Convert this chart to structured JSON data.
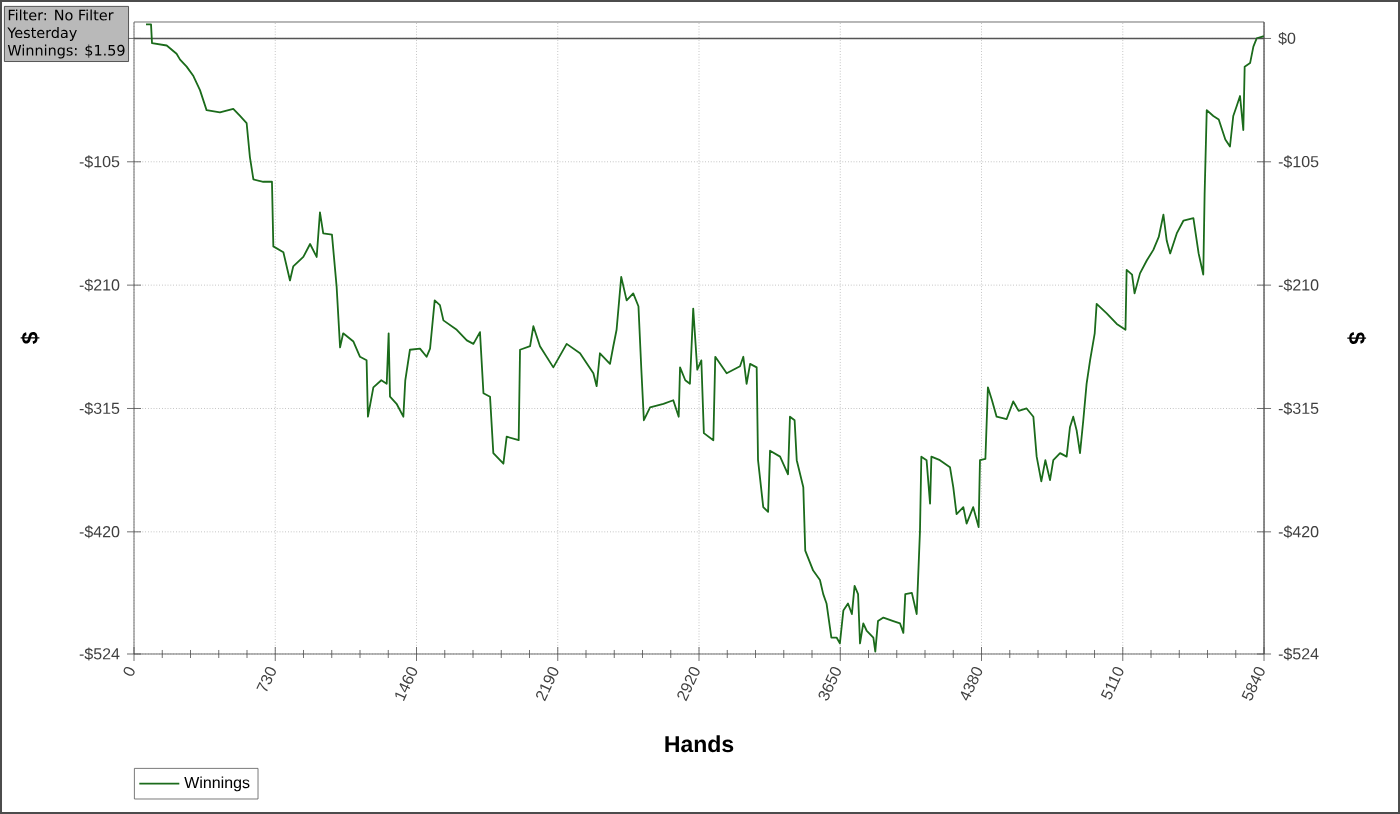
{
  "chart_data": {
    "type": "line",
    "xlabel": "Hands",
    "ylabel": "$",
    "y2label": "$",
    "annotations": [
      "Filter: No Filter",
      "Yesterday",
      "Winnings: $1.59"
    ],
    "x": [
      62,
      88,
      93,
      169,
      220,
      238,
      272,
      307,
      341,
      375,
      444,
      513,
      548,
      582,
      599,
      617,
      668,
      713,
      720,
      772,
      806,
      823,
      875,
      910,
      944,
      961,
      978,
      1023,
      1047,
      1065,
      1081,
      1134,
      1168,
      1202,
      1209,
      1237,
      1278,
      1306,
      1316,
      1323,
      1357,
      1392,
      1402,
      1426,
      1478,
      1512,
      1530,
      1554,
      1581,
      1599,
      1668,
      1720,
      1754,
      1788,
      1806,
      1840,
      1857,
      1909,
      1926,
      1988,
      1995,
      2047,
      2064,
      2098,
      2167,
      2236,
      2305,
      2374,
      2391,
      2408,
      2460,
      2477,
      2494,
      2518,
      2546,
      2580,
      2607,
      2622,
      2635,
      2667,
      2736,
      2787,
      2815,
      2822,
      2849,
      2873,
      2890,
      2911,
      2932,
      2945,
      2994,
      3004,
      3063,
      3132,
      3149,
      3166,
      3184,
      3218,
      3225,
      3252,
      3277,
      3287,
      3339,
      3380,
      3390,
      3414,
      3425,
      3459,
      3469,
      3510,
      3545,
      3562,
      3579,
      3604,
      3631,
      3648,
      3666,
      3690,
      3710,
      3724,
      3742,
      3752,
      3769,
      3786,
      3821,
      3831,
      3845,
      3873,
      3924,
      3959,
      3976,
      3986,
      4020,
      4045,
      4062,
      4069,
      4096,
      4114,
      4121,
      4165,
      4217,
      4234,
      4251,
      4286,
      4303,
      4337,
      4365,
      4372,
      4400,
      4413,
      4434,
      4458,
      4510,
      4544,
      4572,
      4613,
      4648,
      4665,
      4689,
      4710,
      4734,
      4751,
      4786,
      4820,
      4837,
      4854,
      4872,
      4889,
      4906,
      4923,
      4941,
      4965,
      4975,
      5027,
      5079,
      5124,
      5130,
      5158,
      5171,
      5199,
      5234,
      5268,
      5296,
      5320,
      5337,
      5355,
      5389,
      5424,
      5475,
      5502,
      5526,
      5533,
      5544,
      5578,
      5606,
      5640,
      5664,
      5681,
      5698,
      5716,
      5733,
      5740,
      5768,
      5785,
      5802,
      5840
    ],
    "series": [
      {
        "name": "Winnings",
        "color": "#1b6b1b",
        "values": [
          12,
          12,
          -4,
          -6,
          -13,
          -18,
          -24,
          -32,
          -44,
          -61,
          -63,
          -60,
          -66,
          -72,
          -101,
          -120,
          -122,
          -122,
          -177,
          -182,
          -206,
          -194,
          -186,
          -175,
          -186,
          -148,
          -166,
          -167,
          -211,
          -263,
          -251,
          -258,
          -271,
          -274,
          -322,
          -297,
          -291,
          -294,
          -251,
          -305,
          -311,
          -322,
          -291,
          -265,
          -264,
          -271,
          -264,
          -223,
          -227,
          -240,
          -248,
          -257,
          -260,
          -250,
          -302,
          -305,
          -353,
          -362,
          -339,
          -342,
          -265,
          -262,
          -245,
          -262,
          -280,
          -260,
          -268,
          -285,
          -296,
          -268,
          -277,
          -262,
          -248,
          -203,
          -223,
          -217,
          -228,
          -282,
          -325,
          -314,
          -311,
          -308,
          -322,
          -280,
          -291,
          -294,
          -230,
          -282,
          -274,
          -336,
          -342,
          -271,
          -285,
          -279,
          -271,
          -294,
          -277,
          -280,
          -359,
          -399,
          -403,
          -351,
          -356,
          -371,
          -322,
          -325,
          -359,
          -382,
          -436,
          -453,
          -461,
          -473,
          -481,
          -510,
          -510,
          -515,
          -487,
          -481,
          -490,
          -466,
          -473,
          -515,
          -498,
          -504,
          -510,
          -522,
          -496,
          -493,
          -496,
          -498,
          -506,
          -473,
          -472,
          -490,
          -419,
          -356,
          -359,
          -396,
          -356,
          -359,
          -365,
          -382,
          -405,
          -399,
          -413,
          -399,
          -416,
          -359,
          -358,
          -297,
          -308,
          -322,
          -324,
          -309,
          -317,
          -315,
          -322,
          -356,
          -377,
          -359,
          -376,
          -359,
          -353,
          -356,
          -331,
          -322,
          -334,
          -353,
          -325,
          -294,
          -274,
          -251,
          -226,
          -234,
          -243,
          -248,
          -197,
          -201,
          -217,
          -200,
          -189,
          -180,
          -169,
          -150,
          -172,
          -183,
          -166,
          -155,
          -153,
          -183,
          -201,
          -132,
          -61,
          -66,
          -69,
          -86,
          -92,
          -66,
          -58,
          -49,
          -78,
          -24,
          -21,
          -7,
          0,
          2
        ]
      }
    ],
    "xlim": [
      0,
      5840
    ],
    "xticks": [
      0,
      730,
      1460,
      2190,
      2920,
      3650,
      4380,
      5110,
      5840
    ],
    "ylim": [
      -524,
      14
    ],
    "yticks": [
      {
        "value": 0,
        "label": null
      },
      {
        "value": -105,
        "label": "-$105"
      },
      {
        "value": -210,
        "label": "-$210"
      },
      {
        "value": -315,
        "label": "-$315"
      },
      {
        "value": -420,
        "label": "-$420"
      },
      {
        "value": -524,
        "label": "-$524"
      }
    ],
    "y2lim": [
      -524,
      14
    ],
    "y2ticks": [
      {
        "value": 0,
        "label": "$0"
      },
      {
        "value": -105,
        "label": "-$105"
      },
      {
        "value": -210,
        "label": "-$210"
      },
      {
        "value": -315,
        "label": "-$315"
      },
      {
        "value": -420,
        "label": "-$420"
      },
      {
        "value": -524,
        "label": "-$524"
      }
    ],
    "ref_lines": [
      {
        "axis": "y",
        "value": 0,
        "color": "#555555"
      }
    ],
    "grid": true,
    "legend": "bottom left",
    "marker": "none",
    "line_style": "solid"
  }
}
